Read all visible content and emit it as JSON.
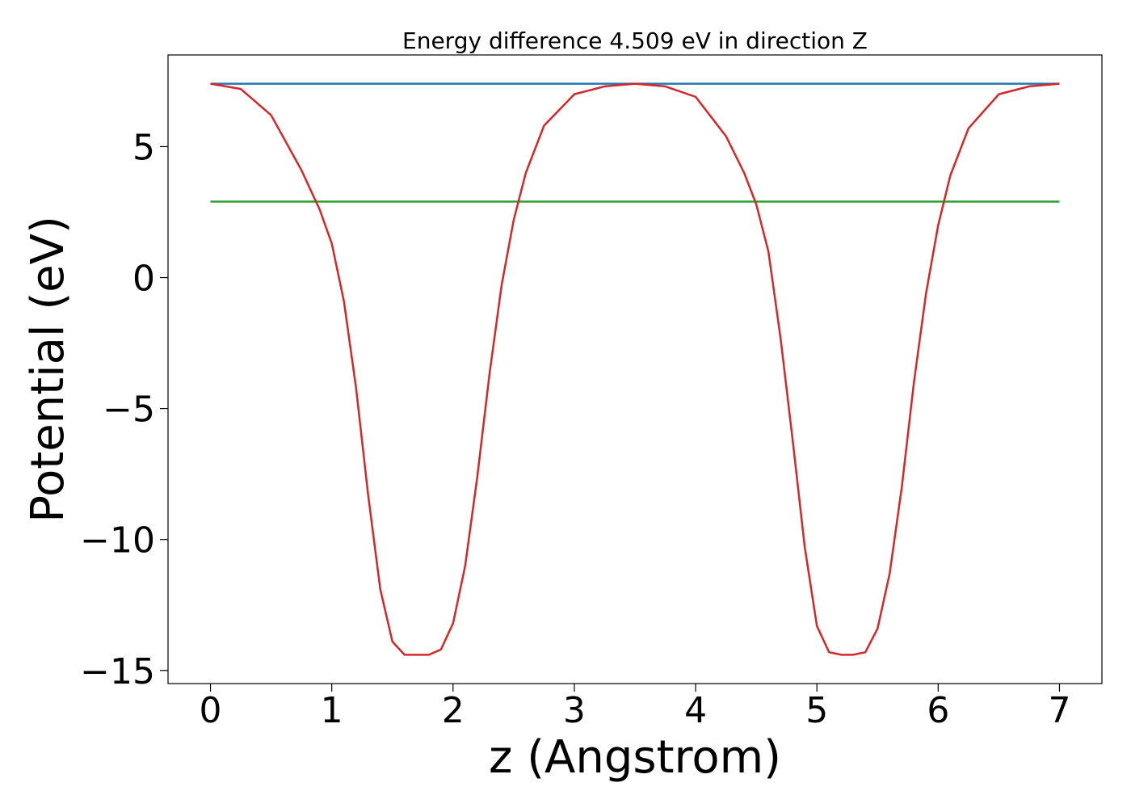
{
  "chart_data": {
    "type": "line",
    "title": "Energy difference 4.509 eV in direction Z",
    "xlabel": "z (Angstrom)",
    "ylabel": "Potential (eV)",
    "xlim": [
      -0.35,
      7.35
    ],
    "ylim": [
      -15.5,
      8.5
    ],
    "xticks": [
      0,
      1,
      2,
      3,
      4,
      5,
      6,
      7
    ],
    "xtick_labels": [
      "0",
      "1",
      "2",
      "3",
      "4",
      "5",
      "6",
      "7"
    ],
    "yticks": [
      5,
      0,
      -5,
      -10,
      -15
    ],
    "ytick_labels": [
      "5",
      "0",
      "−5",
      "−10",
      "−15"
    ],
    "grid": false,
    "legend": "none",
    "series": [
      {
        "color": "#1f77b4",
        "x": [
          0,
          7
        ],
        "y": [
          7.4,
          7.4
        ]
      },
      {
        "color": "#2ca02c",
        "x": [
          0,
          7
        ],
        "y": [
          2.9,
          2.9
        ]
      },
      {
        "color": "#d62728",
        "x": [
          0,
          0.25,
          0.5,
          0.75,
          0.9,
          1.0,
          1.1,
          1.2,
          1.3,
          1.4,
          1.5,
          1.6,
          1.7,
          1.75,
          1.8,
          1.9,
          2.0,
          2.1,
          2.2,
          2.3,
          2.4,
          2.5,
          2.6,
          2.75,
          3.0,
          3.25,
          3.5,
          3.75,
          4.0,
          4.25,
          4.4,
          4.5,
          4.6,
          4.7,
          4.8,
          4.9,
          5.0,
          5.1,
          5.2,
          5.25,
          5.3,
          5.4,
          5.5,
          5.6,
          5.7,
          5.8,
          5.9,
          6.0,
          6.1,
          6.25,
          6.5,
          6.75,
          7.0
        ],
        "y": [
          7.4,
          7.2,
          6.2,
          4.1,
          2.6,
          1.3,
          -0.9,
          -4.2,
          -8.3,
          -11.9,
          -13.9,
          -14.4,
          -14.4,
          -14.4,
          -14.4,
          -14.2,
          -13.2,
          -11.0,
          -7.6,
          -3.7,
          -0.3,
          2.2,
          4.0,
          5.8,
          7.0,
          7.3,
          7.4,
          7.3,
          6.9,
          5.4,
          4.0,
          2.8,
          1.0,
          -2.3,
          -6.2,
          -10.3,
          -13.3,
          -14.3,
          -14.4,
          -14.4,
          -14.4,
          -14.3,
          -13.4,
          -11.3,
          -8.0,
          -4.0,
          -0.6,
          2.0,
          3.9,
          5.7,
          7.0,
          7.3,
          7.4
        ]
      }
    ]
  }
}
